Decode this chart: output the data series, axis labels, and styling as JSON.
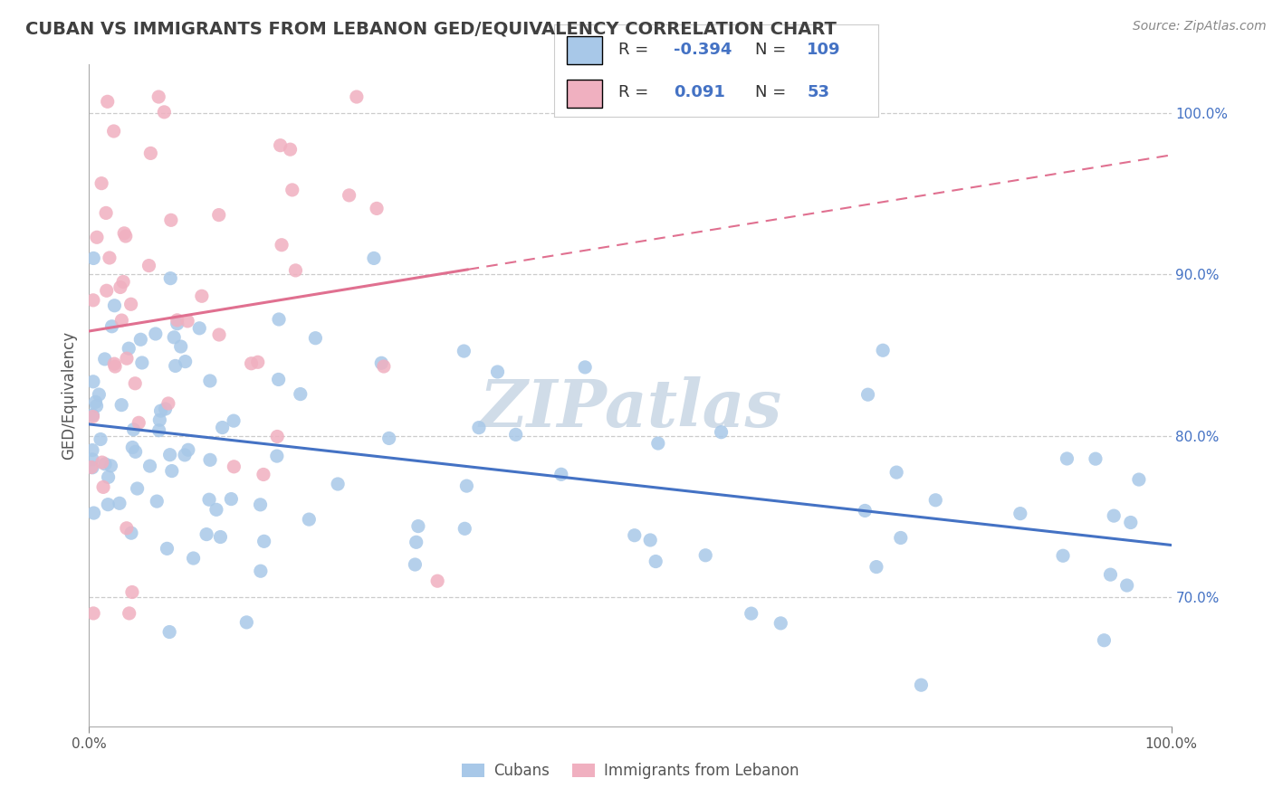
{
  "title": "CUBAN VS IMMIGRANTS FROM LEBANON GED/EQUIVALENCY CORRELATION CHART",
  "source": "Source: ZipAtlas.com",
  "ylabel": "GED/Equivalency",
  "xlim": [
    0.0,
    100.0
  ],
  "ylim": [
    62.0,
    103.0
  ],
  "yticks_right": [
    70.0,
    80.0,
    90.0,
    100.0
  ],
  "ytick_labels_right": [
    "70.0%",
    "80.0%",
    "90.0%",
    "100.0%"
  ],
  "legend_R_blue": "-0.394",
  "legend_N_blue": "109",
  "legend_R_pink": "0.091",
  "legend_N_pink": "53",
  "legend_label_blue": "Cubans",
  "legend_label_pink": "Immigrants from Lebanon",
  "blue_color": "#a8c8e8",
  "pink_color": "#f0b0c0",
  "blue_line_color": "#4472c4",
  "pink_line_color": "#e07090",
  "background_color": "#ffffff",
  "grid_color": "#cccccc",
  "title_color": "#404040",
  "text_color_blue": "#4472c4",
  "watermark_color": "#d0dce8",
  "seed_blue": 12,
  "seed_pink": 7
}
